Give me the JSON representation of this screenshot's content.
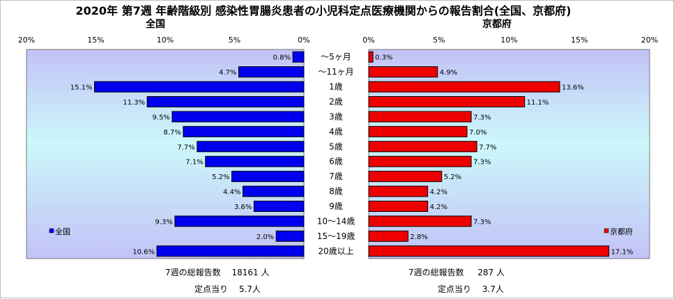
{
  "chart_data": {
    "type": "bar",
    "title": "2020年 第7週 年齢階級別 感染性胃腸炎患者の小児科定点医療機関からの報告割合(全国、京都府)",
    "categories": [
      "～5ヶ月",
      "～11ヶ月",
      "1歳",
      "2歳",
      "3歳",
      "4歳",
      "5歳",
      "6歳",
      "7歳",
      "8歳",
      "9歳",
      "10～14歳",
      "15～19歳",
      "20歳以上"
    ],
    "xlim": [
      0,
      20
    ],
    "x_ticks": [
      "20%",
      "15%",
      "10%",
      "5%",
      "0%"
    ],
    "x_ticks_right": [
      "0%",
      "5%",
      "10%",
      "15%",
      "20%"
    ],
    "grid": false,
    "panels": [
      {
        "title": "全国",
        "legend": "全国",
        "legend_position": "bottom-left",
        "color": "#0000ee",
        "direction": "left",
        "values": [
          0.8,
          4.7,
          15.1,
          11.3,
          9.5,
          8.7,
          7.7,
          7.1,
          5.2,
          4.4,
          3.6,
          9.3,
          2.0,
          10.6
        ],
        "labels": [
          "0.8%",
          "4.7%",
          "15.1%",
          "11.3%",
          "9.5%",
          "8.7%",
          "7.7%",
          "7.1%",
          "5.2%",
          "4.4%",
          "3.6%",
          "9.3%",
          "2.0%",
          "10.6%"
        ],
        "footer": [
          "7週の総報告数 　18161 人",
          "定点当り　 5.7人"
        ]
      },
      {
        "title": "京都府",
        "legend": "京都府",
        "legend_position": "bottom-right",
        "color": "#ee0000",
        "direction": "right",
        "values": [
          0.3,
          4.9,
          13.6,
          11.1,
          7.3,
          7.0,
          7.7,
          7.3,
          5.2,
          4.2,
          4.2,
          7.3,
          2.8,
          17.1
        ],
        "labels": [
          "0.3%",
          "4.9%",
          "13.6%",
          "11.1%",
          "7.3%",
          "7.0%",
          "7.7%",
          "7.3%",
          "5.2%",
          "4.2%",
          "4.2%",
          "7.3%",
          "2.8%",
          "17.1%"
        ],
        "footer": [
          "7週の総報告数 　 287 人",
          "定点当り　 3.7人"
        ]
      }
    ]
  }
}
